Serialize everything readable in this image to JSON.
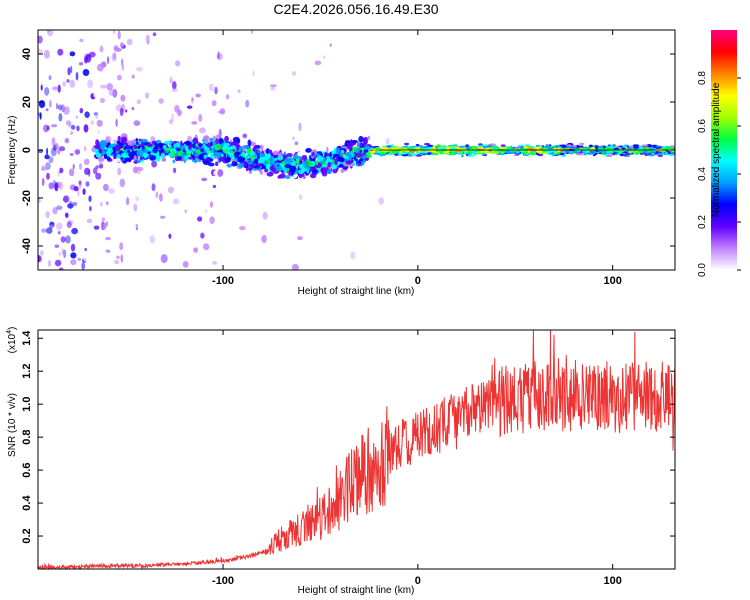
{
  "chart_data": [
    {
      "type": "heatmap",
      "title": "C2E4.2026.056.16.49.E30",
      "xlabel": "Height of straight line (km)",
      "ylabel": "Frequency (Hz)",
      "xlim": [
        -195,
        132
      ],
      "ylim": [
        -50,
        50
      ],
      "xticks": [
        -100,
        0,
        100
      ],
      "xtick_labels": [
        "-100",
        "0",
        "100"
      ],
      "yticks": [
        -40,
        -20,
        0,
        20,
        40
      ],
      "ytick_labels": [
        "-40",
        "-20",
        "0",
        "20",
        "40"
      ],
      "colorbar": {
        "label": "Normalized spectral amplitude",
        "range": [
          0,
          1
        ],
        "ticks": [
          0.0,
          0.2,
          0.4,
          0.6,
          0.8
        ],
        "tick_labels": [
          "0.0",
          "0.2",
          "0.4",
          "0.6",
          "0.8"
        ],
        "colors": [
          "#ffffff",
          "#c080ff",
          "#6000ff",
          "#0000ff",
          "#00a0ff",
          "#00ffff",
          "#00ff40",
          "#a0ff00",
          "#ffff00",
          "#ff8000",
          "#ff0000",
          "#ff0080"
        ]
      },
      "ridge": [
        {
          "x": -160,
          "y": 0
        },
        {
          "x": -140,
          "y": 0
        },
        {
          "x": -120,
          "y": 0
        },
        {
          "x": -100,
          "y": 0
        },
        {
          "x": -90,
          "y": -2
        },
        {
          "x": -80,
          "y": -4
        },
        {
          "x": -70,
          "y": -6
        },
        {
          "x": -60,
          "y": -7
        },
        {
          "x": -50,
          "y": -5
        },
        {
          "x": -40,
          "y": -3
        },
        {
          "x": -30,
          "y": -1
        },
        {
          "x": -20,
          "y": 0
        },
        {
          "x": 0,
          "y": 0
        },
        {
          "x": 50,
          "y": 0
        },
        {
          "x": 100,
          "y": 0
        },
        {
          "x": 132,
          "y": 0
        }
      ]
    },
    {
      "type": "line",
      "xlabel": "Height of straight line (km)",
      "ylabel": "SNR (10 * v/v)",
      "scale_note": "(x10",
      "scale_exp": "4",
      "scale_close": ")",
      "xlim": [
        -195,
        132
      ],
      "ylim": [
        0,
        1.45
      ],
      "xticks": [
        -100,
        0,
        100
      ],
      "xtick_labels": [
        "-100",
        "0",
        "100"
      ],
      "yticks": [
        0.2,
        0.4,
        0.6,
        0.8,
        1.0,
        1.2,
        1.4
      ],
      "ytick_labels": [
        "0.2",
        "0.4",
        "0.6",
        "0.8",
        "1.0",
        "1.2",
        "1.4"
      ],
      "color": "#ee3333",
      "series": [
        {
          "name": "SNR",
          "x": [
            -195,
            -180,
            -160,
            -140,
            -120,
            -100,
            -90,
            -80,
            -75,
            -70,
            -65,
            -60,
            -55,
            -50,
            -45,
            -40,
            -35,
            -30,
            -25,
            -20,
            -15,
            -10,
            -5,
            0,
            10,
            20,
            30,
            40,
            50,
            60,
            70,
            80,
            90,
            100,
            110,
            120,
            132
          ],
          "y": [
            0.01,
            0.01,
            0.02,
            0.02,
            0.03,
            0.05,
            0.07,
            0.1,
            0.14,
            0.19,
            0.22,
            0.25,
            0.28,
            0.31,
            0.36,
            0.42,
            0.5,
            0.55,
            0.6,
            0.66,
            0.7,
            0.74,
            0.78,
            0.8,
            0.86,
            0.92,
            0.98,
            1.01,
            1.03,
            1.05,
            1.07,
            1.05,
            1.05,
            1.04,
            1.05,
            1.04,
            1.05
          ]
        }
      ]
    }
  ]
}
